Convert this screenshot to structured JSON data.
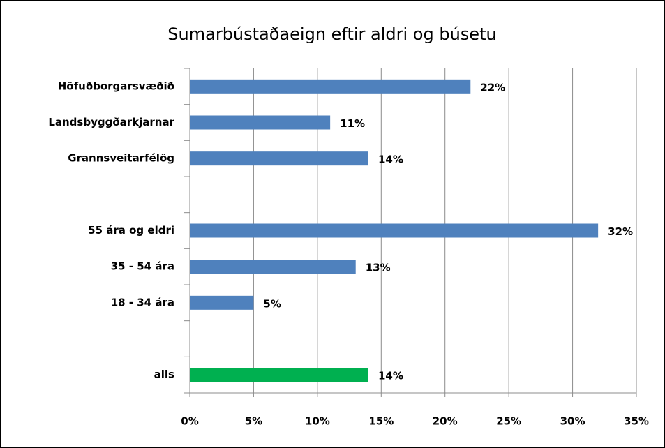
{
  "chart_data": {
    "type": "barh",
    "title": "Sumarbústaðaeign eftir aldri og búsetu",
    "categories": [
      "Höfuðborgarsvæðið",
      "Landsbyggðarkjarnar",
      "Grannsveitarfélög",
      null,
      "55 ára og eldri",
      "35 - 54 ára",
      "18 - 34 ára",
      null,
      "alls"
    ],
    "values": [
      22,
      11,
      14,
      null,
      32,
      13,
      5,
      null,
      14
    ],
    "value_labels": [
      "22%",
      "11%",
      "14%",
      null,
      "32%",
      "13%",
      "5%",
      null,
      "14%"
    ],
    "colors": [
      "#4f81bd",
      "#4f81bd",
      "#4f81bd",
      null,
      "#4f81bd",
      "#4f81bd",
      "#4f81bd",
      null,
      "#00b050"
    ],
    "xlim": [
      0,
      35
    ],
    "xticks": [
      {
        "value": 0,
        "label": "0%"
      },
      {
        "value": 5,
        "label": "5%"
      },
      {
        "value": 10,
        "label": "10%"
      },
      {
        "value": 15,
        "label": "15%"
      },
      {
        "value": 20,
        "label": "20%"
      },
      {
        "value": 25,
        "label": "25%"
      },
      {
        "value": 30,
        "label": "30%"
      },
      {
        "value": 35,
        "label": "35%"
      }
    ],
    "grid": true
  }
}
